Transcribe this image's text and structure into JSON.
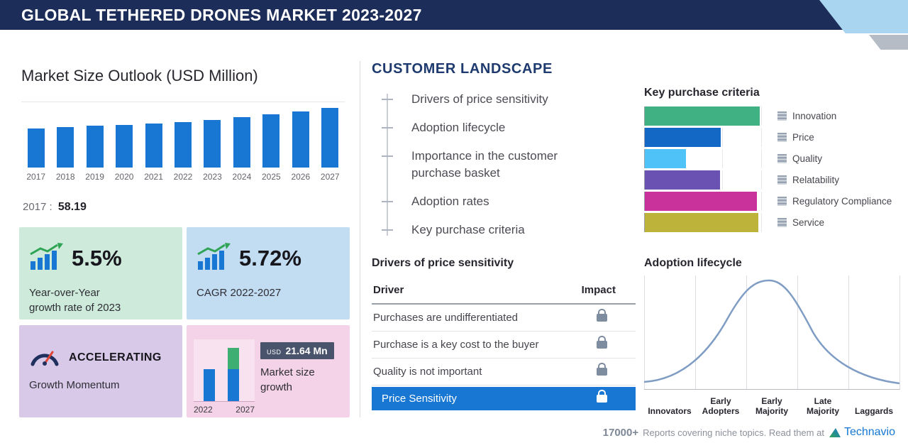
{
  "header": {
    "title": "GLOBAL TETHERED DRONES MARKET 2023-2027"
  },
  "market_outlook": {
    "base_year": "2017",
    "separator": ":",
    "base_value": "58.19",
    "cards": {
      "yoy": {
        "value": "5.5%",
        "line1": "Year-over-Year",
        "line2": "growth rate of 2023"
      },
      "cagr": {
        "value": "5.72%",
        "label": "CAGR 2022-2027"
      },
      "momentum": {
        "title": "ACCELERATING",
        "label": "Growth Momentum"
      },
      "growth": {
        "currency": "USD",
        "amount": "21.64 Mn",
        "line1": "Market size",
        "line2": "growth",
        "year_start": "2022",
        "year_end": "2027"
      }
    }
  },
  "customer_landscape": {
    "title": "CUSTOMER LANDSCAPE",
    "items": [
      "Drivers of price sensitivity",
      "Adoption lifecycle",
      "Importance in the customer purchase basket",
      "Adoption rates",
      "Key purchase criteria"
    ],
    "drivers_table": {
      "title": "Drivers of price sensitivity",
      "columns": {
        "driver": "Driver",
        "impact": "Impact"
      },
      "rows": [
        "Purchases are undifferentiated",
        "Purchase is a key cost to the buyer",
        "Quality is not important"
      ],
      "highlight": "Price Sensitivity"
    }
  },
  "footer": {
    "count": "17000+",
    "text": "Reports covering niche topics. Read them at",
    "brand": "Technavio"
  },
  "colors": {
    "header_bg": "#1c2d59",
    "accent_blue": "#1877d2",
    "card_green": "#cdeada",
    "card_blue": "#c2dcf2",
    "card_purple": "#d9c9e9",
    "card_pink": "#f4d2e7",
    "highlight_row": "#1877d2"
  },
  "chart_data": [
    {
      "id": "market_size_outlook",
      "type": "bar",
      "title": "Market Size Outlook (USD Million)",
      "categories": [
        "2017",
        "2018",
        "2019",
        "2020",
        "2021",
        "2022",
        "2023",
        "2024",
        "2025",
        "2026",
        "2027"
      ],
      "values": [
        58.19,
        60.1,
        62.1,
        63.5,
        65.3,
        67.5,
        71.2,
        75.3,
        79.6,
        84.2,
        89.1
      ],
      "labeled_point": {
        "category": "2017",
        "value": 58.19
      },
      "bar_color": "#1877d2",
      "xlabel": "",
      "ylabel": "USD Million",
      "grid": false,
      "legend": "none",
      "note": "Only the 2017 value (58.19) is labeled on screen; remaining values estimated from bar heights, consistent with 5.5% YoY 2023, 5.72% CAGR 2022-2027 and USD 21.64 Mn growth 2022-2027"
    },
    {
      "id": "key_purchase_criteria",
      "type": "bar",
      "orientation": "horizontal",
      "title": "Key purchase criteria",
      "categories": [
        "Innovation",
        "Price",
        "Quality",
        "Relatability",
        "Regulatory Compliance",
        "Service"
      ],
      "values": [
        98,
        65,
        35,
        64,
        96,
        97
      ],
      "value_unit": "relative length, percent of plot width (no numeric axis shown)",
      "colors": [
        "#3fb183",
        "#1268c4",
        "#4fc3f7",
        "#6a52b3",
        "#c9319b",
        "#bdb23a"
      ],
      "legend_position": "right",
      "grid": true
    },
    {
      "id": "adoption_lifecycle",
      "type": "area",
      "title": "Adoption lifecycle",
      "categories": [
        "Innovators",
        "Early Adopters",
        "Early Majority",
        "Late Majority",
        "Laggards"
      ],
      "shape": "bell curve with peak in the Early Majority segment",
      "curve_color": "#7f9dc4",
      "grid": true
    }
  ]
}
